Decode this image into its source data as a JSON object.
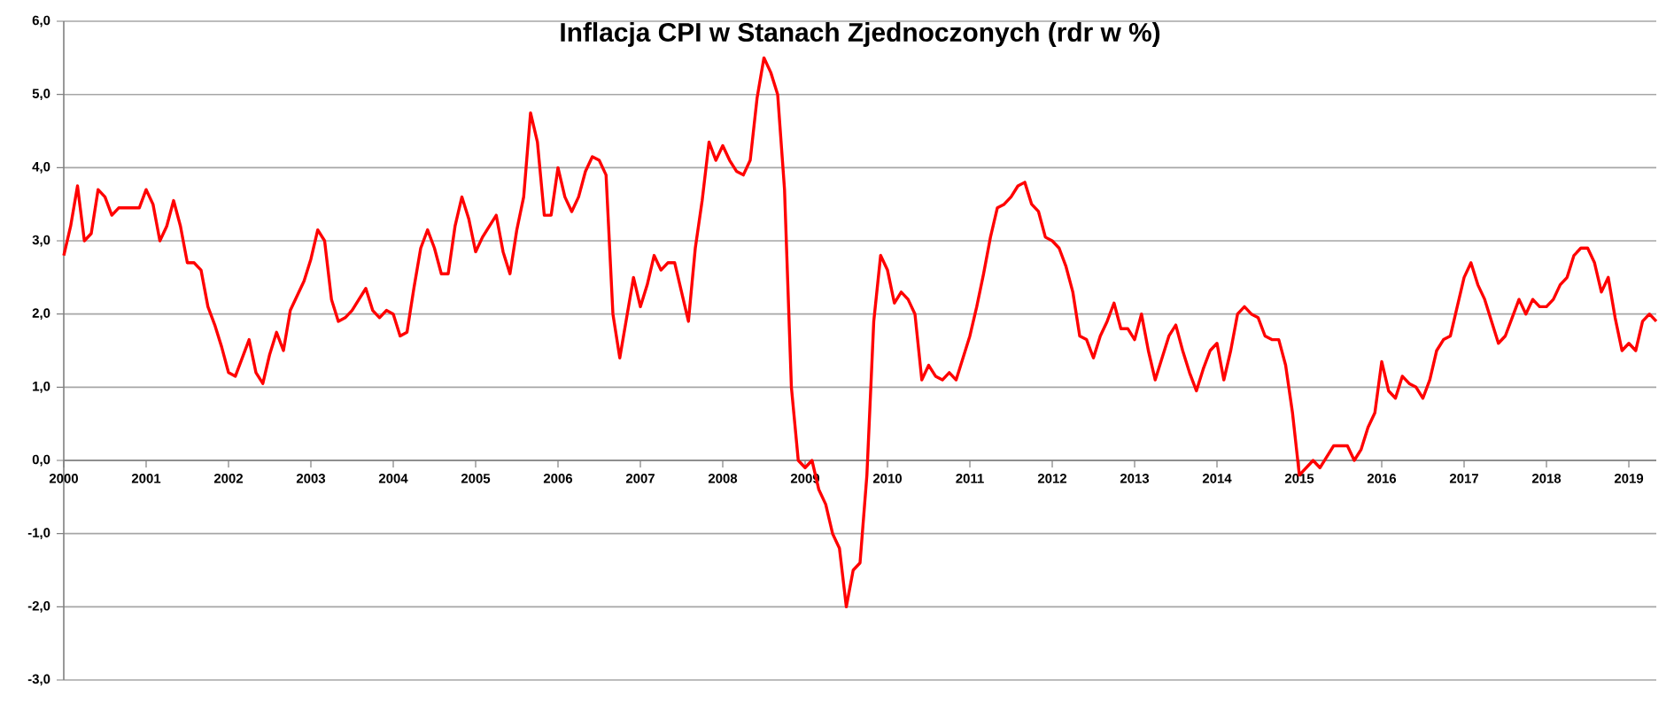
{
  "chart_data": {
    "type": "line",
    "title": "Inflacja CPI w Stanach Zjednoczonych (rdr w %)",
    "categories": [
      "2000",
      null,
      null,
      null,
      null,
      null,
      null,
      null,
      null,
      null,
      null,
      null,
      "2001",
      null,
      null,
      null,
      null,
      null,
      null,
      null,
      null,
      null,
      null,
      null,
      "2002",
      null,
      null,
      null,
      null,
      null,
      null,
      null,
      null,
      null,
      null,
      null,
      "2003",
      null,
      null,
      null,
      null,
      null,
      null,
      null,
      null,
      null,
      null,
      null,
      "2004",
      null,
      null,
      null,
      null,
      null,
      null,
      null,
      null,
      null,
      null,
      null,
      "2005",
      null,
      null,
      null,
      null,
      null,
      null,
      null,
      null,
      null,
      null,
      null,
      "2006",
      null,
      null,
      null,
      null,
      null,
      null,
      null,
      null,
      null,
      null,
      null,
      "2007",
      null,
      null,
      null,
      null,
      null,
      null,
      null,
      null,
      null,
      null,
      null,
      "2008",
      null,
      null,
      null,
      null,
      null,
      null,
      null,
      null,
      null,
      null,
      null,
      "2009",
      null,
      null,
      null,
      null,
      null,
      null,
      null,
      null,
      null,
      null,
      null,
      "2010",
      null,
      null,
      null,
      null,
      null,
      null,
      null,
      null,
      null,
      null,
      null,
      "2011",
      null,
      null,
      null,
      null,
      null,
      null,
      null,
      null,
      null,
      null,
      null,
      "2012",
      null,
      null,
      null,
      null,
      null,
      null,
      null,
      null,
      null,
      null,
      null,
      "2013",
      null,
      null,
      null,
      null,
      null,
      null,
      null,
      null,
      null,
      null,
      null,
      "2014",
      null,
      null,
      null,
      null,
      null,
      null,
      null,
      null,
      null,
      null,
      null,
      "2015",
      null,
      null,
      null,
      null,
      null,
      null,
      null,
      null,
      null,
      null,
      null,
      "2016",
      null,
      null,
      null,
      null,
      null,
      null,
      null,
      null,
      null,
      null,
      null,
      "2017",
      null,
      null,
      null,
      null,
      null,
      null,
      null,
      null,
      null,
      null,
      null,
      "2018",
      null,
      null,
      null,
      null,
      null,
      null,
      null,
      null,
      null,
      null,
      null,
      "2019",
      null,
      null,
      null,
      null
    ],
    "series": [
      {
        "color": "#ff0000",
        "values": [
          2.8,
          3.2,
          3.75,
          3.0,
          3.1,
          3.7,
          3.6,
          3.35,
          3.45,
          3.45,
          3.45,
          3.45,
          3.7,
          3.5,
          3.0,
          3.2,
          3.55,
          3.2,
          2.7,
          2.7,
          2.6,
          2.1,
          1.85,
          1.55,
          1.2,
          1.15,
          1.4,
          1.65,
          1.2,
          1.05,
          1.45,
          1.75,
          1.5,
          2.05,
          2.25,
          2.45,
          2.75,
          3.15,
          3.0,
          2.2,
          1.9,
          1.95,
          2.05,
          2.2,
          2.35,
          2.05,
          1.95,
          2.05,
          2.0,
          1.7,
          1.75,
          2.35,
          2.9,
          3.15,
          2.9,
          2.55,
          2.55,
          3.2,
          3.6,
          3.3,
          2.85,
          3.05,
          3.2,
          3.35,
          2.85,
          2.55,
          3.15,
          3.6,
          4.75,
          4.35,
          3.35,
          3.35,
          4.0,
          3.6,
          3.4,
          3.6,
          3.95,
          4.15,
          4.1,
          3.9,
          2.0,
          1.4,
          1.95,
          2.5,
          2.1,
          2.4,
          2.8,
          2.6,
          2.7,
          2.7,
          2.3,
          1.9,
          2.9,
          3.55,
          4.35,
          4.1,
          4.3,
          4.1,
          3.95,
          3.9,
          4.1,
          4.95,
          5.5,
          5.3,
          5.0,
          3.7,
          1.0,
          0.0,
          -0.1,
          0.0,
          -0.4,
          -0.6,
          -1.0,
          -1.2,
          -2.0,
          -1.5,
          -1.4,
          -0.2,
          1.9,
          2.8,
          2.6,
          2.15,
          2.3,
          2.2,
          2.0,
          1.1,
          1.3,
          1.15,
          1.1,
          1.2,
          1.1,
          1.4,
          1.7,
          2.1,
          2.55,
          3.05,
          3.45,
          3.5,
          3.6,
          3.75,
          3.8,
          3.5,
          3.4,
          3.05,
          3.0,
          2.9,
          2.65,
          2.3,
          1.7,
          1.65,
          1.4,
          1.7,
          1.9,
          2.15,
          1.8,
          1.8,
          1.65,
          2.0,
          1.5,
          1.1,
          1.4,
          1.7,
          1.85,
          1.5,
          1.2,
          0.95,
          1.25,
          1.5,
          1.6,
          1.1,
          1.5,
          2.0,
          2.1,
          2.0,
          1.95,
          1.7,
          1.65,
          1.65,
          1.3,
          0.65,
          -0.2,
          -0.1,
          0.0,
          -0.1,
          0.05,
          0.2,
          0.2,
          0.2,
          0.0,
          0.15,
          0.45,
          0.65,
          1.35,
          0.95,
          0.85,
          1.15,
          1.05,
          1.0,
          0.85,
          1.1,
          1.5,
          1.65,
          1.7,
          2.1,
          2.5,
          2.7,
          2.4,
          2.2,
          1.9,
          1.6,
          1.7,
          1.95,
          2.2,
          2.0,
          2.2,
          2.1,
          2.1,
          2.2,
          2.4,
          2.5,
          2.8,
          2.9,
          2.9,
          2.7,
          2.3,
          2.5,
          1.95,
          1.5,
          1.6,
          1.5,
          1.9,
          2.0,
          1.9
        ]
      }
    ],
    "ylim": [
      -3,
      6
    ],
    "yticks": [
      {
        "value": -3,
        "label": "-3,0"
      },
      {
        "value": -2,
        "label": "-2,0"
      },
      {
        "value": -1,
        "label": "-1,0"
      },
      {
        "value": 0,
        "label": "0,0"
      },
      {
        "value": 1,
        "label": "1,0"
      },
      {
        "value": 2,
        "label": "2,0"
      },
      {
        "value": 3,
        "label": "3,0"
      },
      {
        "value": 4,
        "label": "4,0"
      },
      {
        "value": 5,
        "label": "5,0"
      },
      {
        "value": 6,
        "label": "6,0"
      }
    ],
    "grid": "y"
  }
}
